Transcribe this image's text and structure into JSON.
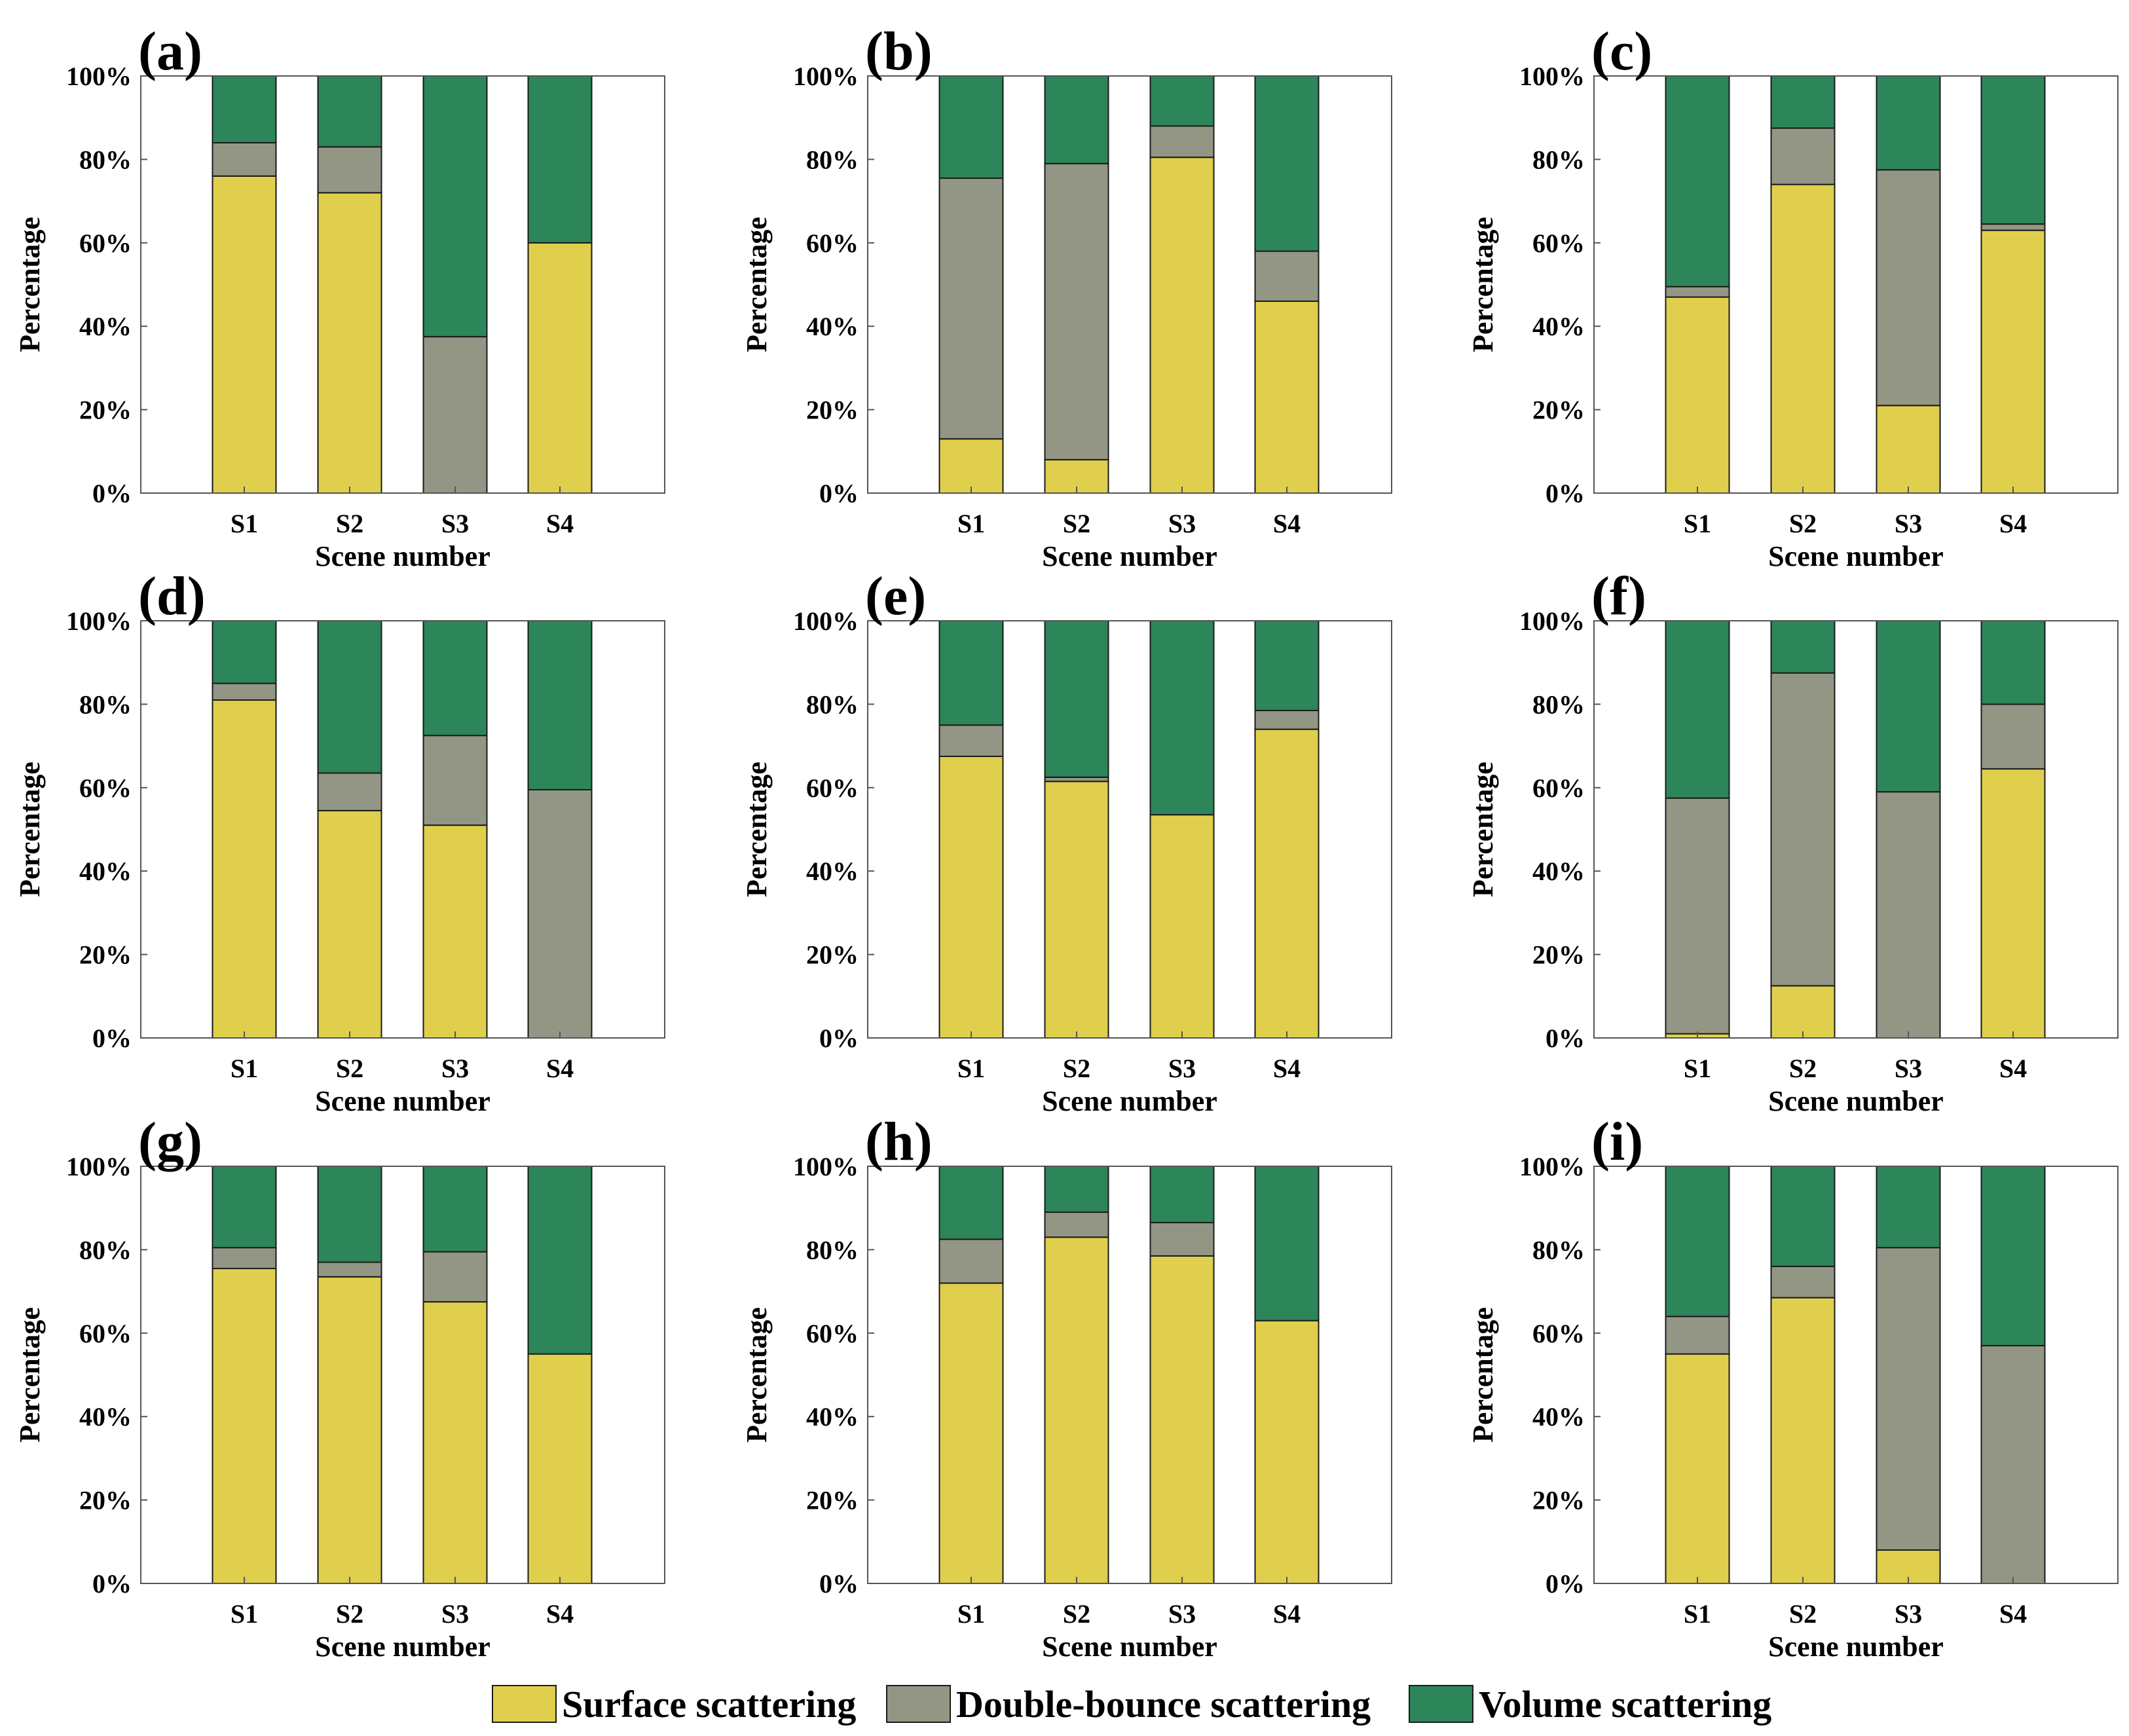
{
  "colors": {
    "surface": "#E0CF4C",
    "double": "#939684",
    "volume": "#2C8659"
  },
  "chart_data": [
    {
      "type": "bar",
      "stacked": true,
      "label": "(a)",
      "categories": [
        "S1",
        "S2",
        "S3",
        "S4"
      ],
      "xlabel": "Scene number",
      "ylabel": "Percentage",
      "ylim": [
        0,
        100
      ],
      "yticks": [
        "0%",
        "20%",
        "40%",
        "60%",
        "80%",
        "100%"
      ],
      "series": [
        {
          "name": "Surface scattering",
          "values": [
            76,
            72,
            0,
            60
          ]
        },
        {
          "name": "Double-bounce scattering",
          "values": [
            8,
            11,
            37.5,
            0
          ]
        },
        {
          "name": "Volume scattering",
          "values": [
            16,
            17,
            62.5,
            40
          ]
        }
      ]
    },
    {
      "type": "bar",
      "stacked": true,
      "label": "(b)",
      "categories": [
        "S1",
        "S2",
        "S3",
        "S4"
      ],
      "xlabel": "Scene number",
      "ylabel": "Percentage",
      "ylim": [
        0,
        100
      ],
      "yticks": [
        "0%",
        "20%",
        "40%",
        "60%",
        "80%",
        "100%"
      ],
      "series": [
        {
          "name": "Surface scattering",
          "values": [
            13,
            8,
            80.5,
            46
          ]
        },
        {
          "name": "Double-bounce scattering",
          "values": [
            62.5,
            71,
            7.5,
            12
          ]
        },
        {
          "name": "Volume scattering",
          "values": [
            24.5,
            21,
            12,
            42
          ]
        }
      ]
    },
    {
      "type": "bar",
      "stacked": true,
      "label": "(c)",
      "categories": [
        "S1",
        "S2",
        "S3",
        "S4"
      ],
      "xlabel": "Scene number",
      "ylabel": "Percentage",
      "ylim": [
        0,
        100
      ],
      "yticks": [
        "0%",
        "20%",
        "40%",
        "60%",
        "80%",
        "100%"
      ],
      "series": [
        {
          "name": "Surface scattering",
          "values": [
            47,
            74,
            21,
            63
          ]
        },
        {
          "name": "Double-bounce scattering",
          "values": [
            2.5,
            13.5,
            56.5,
            1.5
          ]
        },
        {
          "name": "Volume scattering",
          "values": [
            50.5,
            12.5,
            22.5,
            35.5
          ]
        }
      ]
    },
    {
      "type": "bar",
      "stacked": true,
      "label": "(d)",
      "categories": [
        "S1",
        "S2",
        "S3",
        "S4"
      ],
      "xlabel": "Scene number",
      "ylabel": "Percentage",
      "ylim": [
        0,
        100
      ],
      "yticks": [
        "0%",
        "20%",
        "40%",
        "60%",
        "80%",
        "100%"
      ],
      "series": [
        {
          "name": "Surface scattering",
          "values": [
            81,
            54.5,
            51,
            0
          ]
        },
        {
          "name": "Double-bounce scattering",
          "values": [
            4,
            9,
            21.5,
            59.5
          ]
        },
        {
          "name": "Volume scattering",
          "values": [
            15,
            36.5,
            27.5,
            40.5
          ]
        }
      ]
    },
    {
      "type": "bar",
      "stacked": true,
      "label": "(e)",
      "categories": [
        "S1",
        "S2",
        "S3",
        "S4"
      ],
      "xlabel": "Scene number",
      "ylabel": "Percentage",
      "ylim": [
        0,
        100
      ],
      "yticks": [
        "0%",
        "20%",
        "40%",
        "60%",
        "80%",
        "100%"
      ],
      "series": [
        {
          "name": "Surface scattering",
          "values": [
            67.5,
            61.5,
            53.5,
            74
          ]
        },
        {
          "name": "Double-bounce scattering",
          "values": [
            7.5,
            1,
            0,
            4.5
          ]
        },
        {
          "name": "Volume scattering",
          "values": [
            25,
            37.5,
            46.5,
            21.5
          ]
        }
      ]
    },
    {
      "type": "bar",
      "stacked": true,
      "label": "(f)",
      "categories": [
        "S1",
        "S2",
        "S3",
        "S4"
      ],
      "xlabel": "Scene number",
      "ylabel": "Percentage",
      "ylim": [
        0,
        100
      ],
      "yticks": [
        "0%",
        "20%",
        "40%",
        "60%",
        "80%",
        "100%"
      ],
      "series": [
        {
          "name": "Surface scattering",
          "values": [
            1,
            12.5,
            0,
            64.5
          ]
        },
        {
          "name": "Double-bounce scattering",
          "values": [
            56.5,
            75,
            59,
            15.5
          ]
        },
        {
          "name": "Volume scattering",
          "values": [
            42.5,
            12.5,
            41,
            20
          ]
        }
      ]
    },
    {
      "type": "bar",
      "stacked": true,
      "label": "(g)",
      "categories": [
        "S1",
        "S2",
        "S3",
        "S4"
      ],
      "xlabel": "Scene number",
      "ylabel": "Percentage",
      "ylim": [
        0,
        100
      ],
      "yticks": [
        "0%",
        "20%",
        "40%",
        "60%",
        "80%",
        "100%"
      ],
      "series": [
        {
          "name": "Surface scattering",
          "values": [
            75.5,
            73.5,
            67.5,
            55
          ]
        },
        {
          "name": "Double-bounce scattering",
          "values": [
            5,
            3.5,
            12,
            0
          ]
        },
        {
          "name": "Volume scattering",
          "values": [
            19.5,
            23,
            20.5,
            45
          ]
        }
      ]
    },
    {
      "type": "bar",
      "stacked": true,
      "label": "(h)",
      "categories": [
        "S1",
        "S2",
        "S3",
        "S4"
      ],
      "xlabel": "Scene number",
      "ylabel": "Percentage",
      "ylim": [
        0,
        100
      ],
      "yticks": [
        "0%",
        "20%",
        "40%",
        "60%",
        "80%",
        "100%"
      ],
      "series": [
        {
          "name": "Surface scattering",
          "values": [
            72,
            83,
            78.5,
            63
          ]
        },
        {
          "name": "Double-bounce scattering",
          "values": [
            10.5,
            6,
            8,
            0
          ]
        },
        {
          "name": "Volume scattering",
          "values": [
            17.5,
            11,
            13.5,
            37
          ]
        }
      ]
    },
    {
      "type": "bar",
      "stacked": true,
      "label": "(i)",
      "categories": [
        "S1",
        "S2",
        "S3",
        "S4"
      ],
      "xlabel": "Scene number",
      "ylabel": "Percentage",
      "ylim": [
        0,
        100
      ],
      "yticks": [
        "0%",
        "20%",
        "40%",
        "60%",
        "80%",
        "100%"
      ],
      "series": [
        {
          "name": "Surface scattering",
          "values": [
            55,
            68.5,
            8,
            0
          ]
        },
        {
          "name": "Double-bounce scattering",
          "values": [
            9,
            7.5,
            72.5,
            57
          ]
        },
        {
          "name": "Volume scattering",
          "values": [
            36,
            24,
            19.5,
            43
          ]
        }
      ]
    }
  ],
  "legend": {
    "items": [
      {
        "key": "surface",
        "label": "Surface scattering"
      },
      {
        "key": "double",
        "label": "Double-bounce scattering"
      },
      {
        "key": "volume",
        "label": "Volume scattering"
      }
    ]
  }
}
